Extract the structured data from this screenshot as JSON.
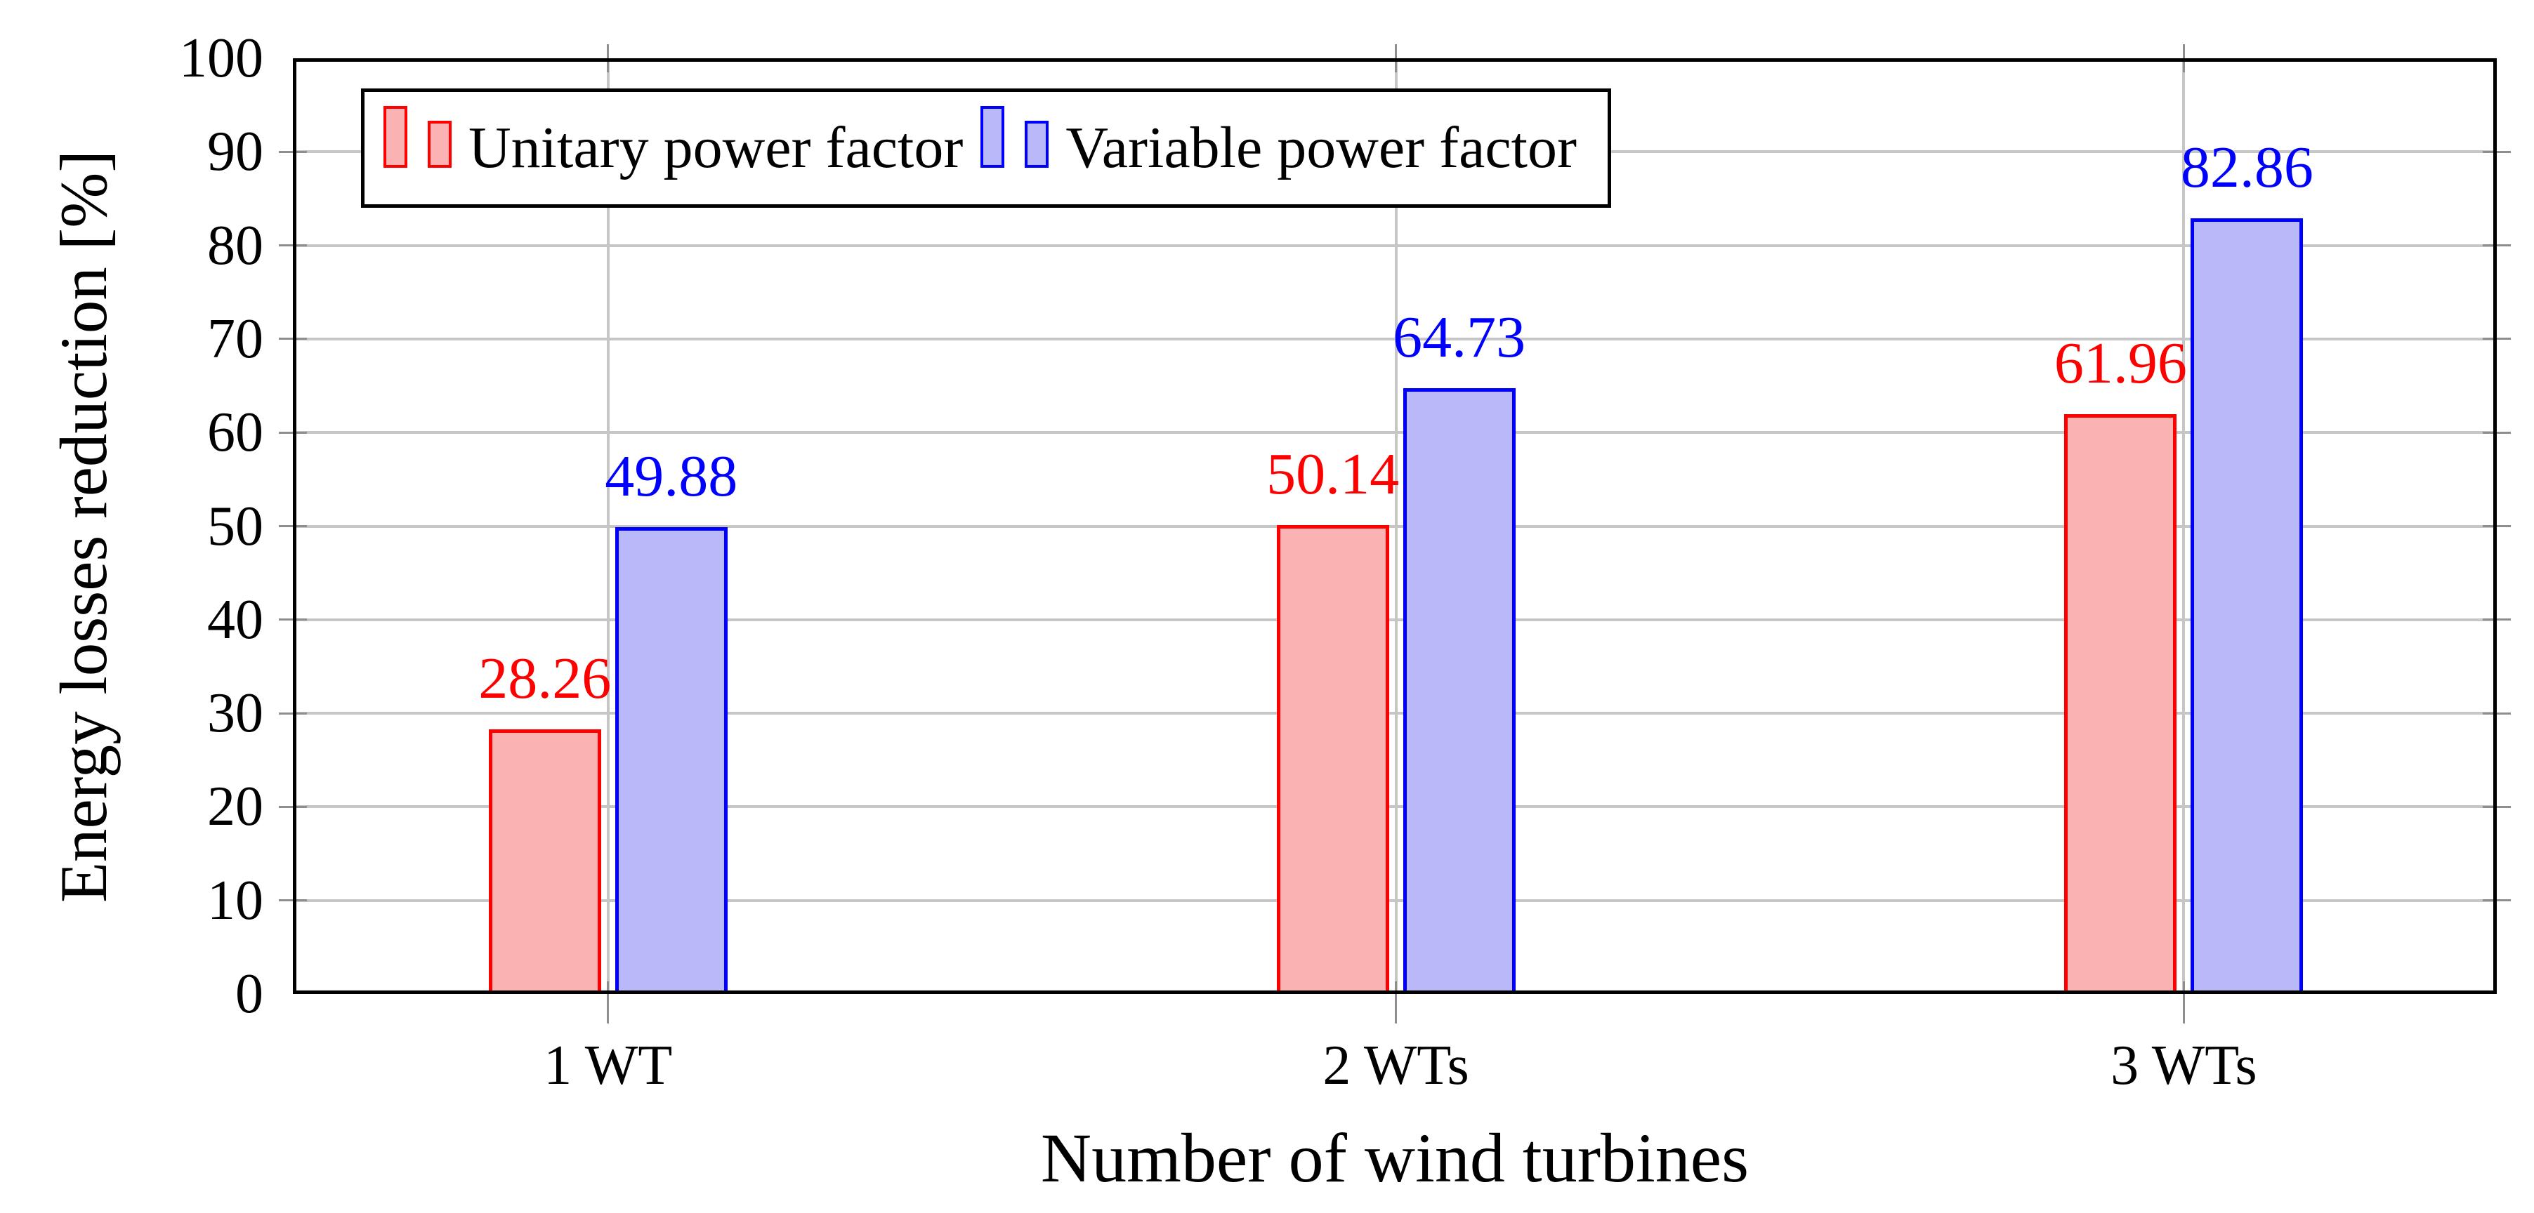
{
  "chart_data": {
    "type": "bar",
    "title": "",
    "xlabel": "Number of wind turbines",
    "ylabel": "Energy losses reduction [%]",
    "categories": [
      "1 WT",
      "2 WTs",
      "3 WTs"
    ],
    "series": [
      {
        "name": "Unitary power factor",
        "values": [
          28.26,
          50.14,
          61.96
        ],
        "fill_color": "#FAB2B2",
        "edge_color": "#FF0000"
      },
      {
        "name": "Variable power factor",
        "values": [
          49.88,
          64.73,
          82.86
        ],
        "fill_color": "#B9B9FA",
        "edge_color": "#0000FF"
      }
    ],
    "value_label_decimals": 2,
    "ylim": [
      0,
      100
    ],
    "ytick_interval": 10,
    "ytick_labels": [
      "0",
      "10",
      "20",
      "30",
      "40",
      "50",
      "60",
      "70",
      "80",
      "90",
      "100"
    ],
    "grid": true,
    "grid_color": "#C6C6C6",
    "tick_color": "#8E8E8E",
    "frame_color": "#000000",
    "background_color": "#FFFFFF",
    "legend_position": "top-left"
  }
}
